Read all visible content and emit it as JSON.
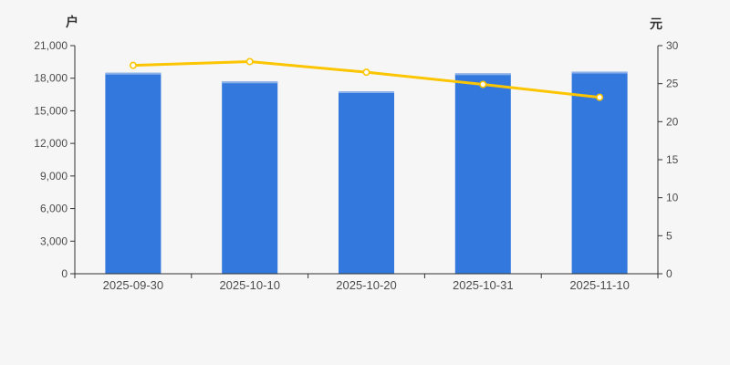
{
  "page": {
    "background_color": "#f6f6f6"
  },
  "chart_data": {
    "type": "combo",
    "title": "",
    "grid": false,
    "legend_position": "none",
    "categories": [
      "2025-09-30",
      "2025-10-10",
      "2025-10-20",
      "2025-10-31",
      "2025-11-10"
    ],
    "series": [
      {
        "name": "bar-series",
        "type": "bar",
        "y_axis": "left",
        "color": "#3379DD",
        "bar_top_highlight_color": "#8CB0E8",
        "values": [
          18500,
          17700,
          16800,
          18450,
          18600
        ]
      },
      {
        "name": "line-series",
        "type": "line",
        "y_axis": "right",
        "color": "#FBC501",
        "marker_fill": "#FFFFFF",
        "values": [
          27.4,
          27.9,
          26.5,
          24.9,
          23.2
        ]
      }
    ],
    "left_axis": {
      "unit_label": "户",
      "min": 0,
      "max": 21000,
      "tick_step": 3000,
      "tick_labels": [
        "0",
        "3,000",
        "6,000",
        "9,000",
        "12,000",
        "15,000",
        "18,000",
        "21,000"
      ]
    },
    "right_axis": {
      "unit_label": "元",
      "min": 0,
      "max": 30,
      "tick_step": 5,
      "tick_labels": [
        "0",
        "5",
        "10",
        "15",
        "20",
        "25",
        "30"
      ]
    },
    "axis_color": "#333333",
    "tick_label_color": "#4d4d4d"
  }
}
